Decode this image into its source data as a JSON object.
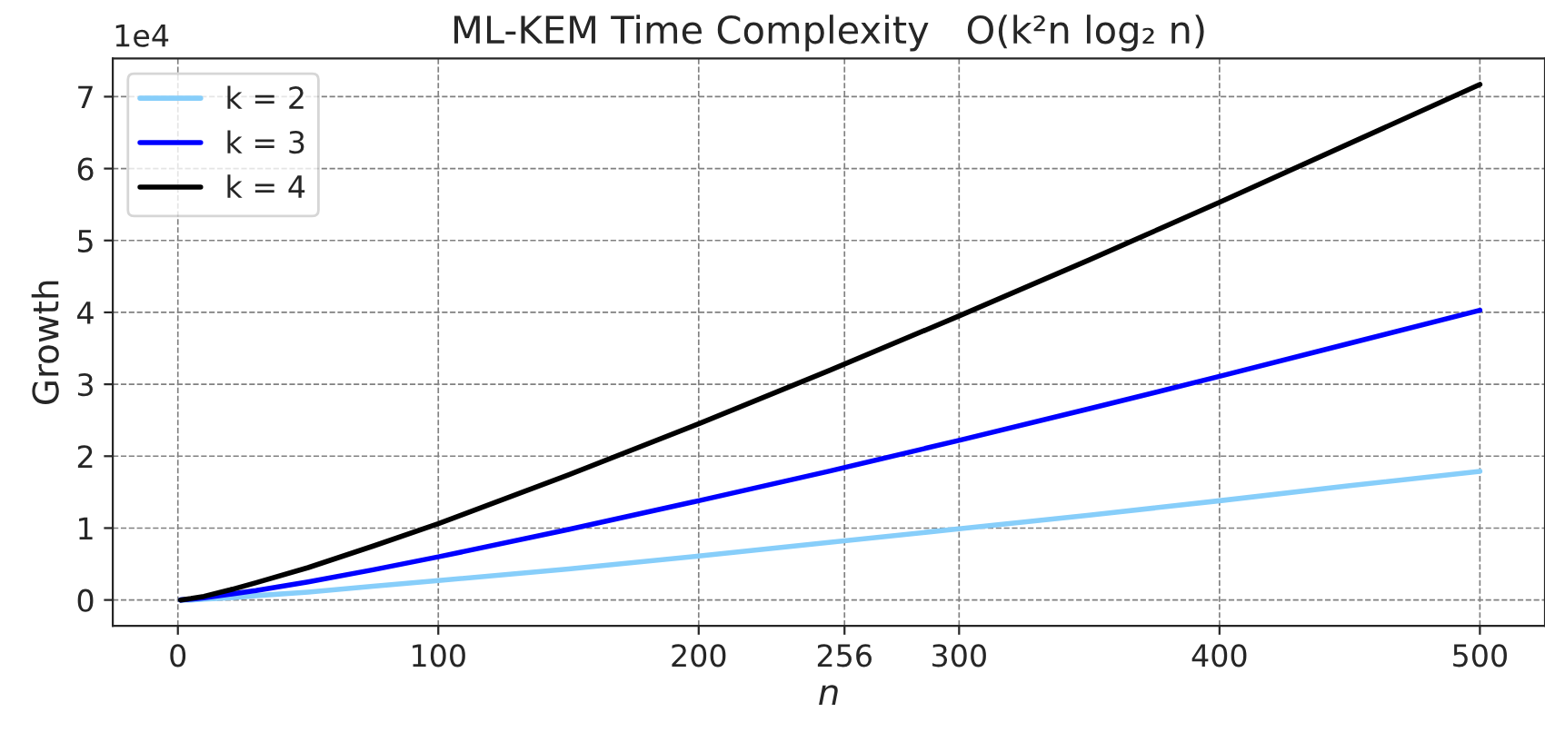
{
  "chart_data": {
    "type": "line",
    "title": "ML-KEM Time Complexity   O(k²n log₂ n)",
    "xlabel": "n",
    "ylabel": "Growth",
    "x": [
      1,
      5,
      10,
      20,
      30,
      50,
      75,
      100,
      150,
      200,
      250,
      300,
      350,
      400,
      450,
      500
    ],
    "series": [
      {
        "name": "k = 2",
        "color": "#87cefa",
        "values": [
          0,
          0.0,
          0.01,
          0.03,
          0.06,
          0.11,
          0.19,
          0.27,
          0.43,
          0.61,
          0.8,
          0.99,
          1.18,
          1.38,
          1.59,
          1.79
        ]
      },
      {
        "name": "k = 3",
        "color": "#0000ff",
        "values": [
          0,
          0.01,
          0.03,
          0.08,
          0.13,
          0.25,
          0.42,
          0.6,
          0.98,
          1.38,
          1.79,
          2.22,
          2.66,
          3.11,
          3.57,
          4.03
        ]
      },
      {
        "name": "k = 4",
        "color": "#000000",
        "values": [
          0,
          0.02,
          0.05,
          0.14,
          0.24,
          0.45,
          0.75,
          1.06,
          1.74,
          2.45,
          3.19,
          3.95,
          4.73,
          5.53,
          6.35,
          7.17
        ]
      }
    ],
    "xlim": [
      -25,
      525
    ],
    "xticks": [
      0,
      100,
      200,
      256,
      300,
      400,
      500
    ],
    "ylim": [
      -0.36,
      7.53
    ],
    "yticks": [
      0,
      1,
      2,
      3,
      4,
      5,
      6,
      7
    ],
    "annotations": [
      "1e4"
    ],
    "grid": true,
    "legend": "top left",
    "marker": "none",
    "line_style": "solid"
  }
}
